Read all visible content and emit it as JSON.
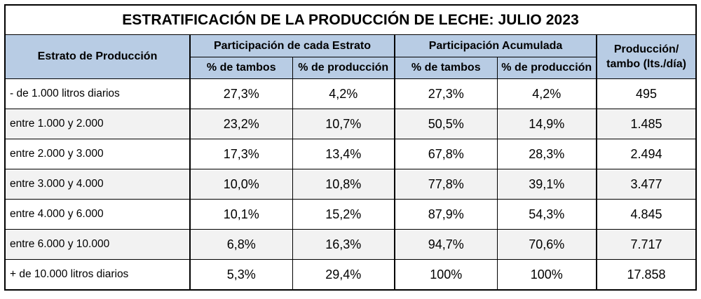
{
  "title": "ESTRATIFICACIÓN DE LA PRODUCCIÓN DE LECHE: JULIO 2023",
  "headers": {
    "estrato": "Estrato de Producción",
    "participacion_estrato": "Participación de cada Estrato",
    "participacion_acumulada": "Participación Acumulada",
    "produccion_line1": "Producción/",
    "produccion_line2": "tambo (lts./día)",
    "pct_tambos": "% de tambos",
    "pct_produccion": "% de producción"
  },
  "rows": [
    {
      "estrato": "- de 1.000 litros diarios",
      "tambos": "27,3%",
      "produccion": "4,2%",
      "acum_tambos": "27,3%",
      "acum_produccion": "4,2%",
      "prod_tambo": "495"
    },
    {
      "estrato": "entre 1.000 y 2.000",
      "tambos": "23,2%",
      "produccion": "10,7%",
      "acum_tambos": "50,5%",
      "acum_produccion": "14,9%",
      "prod_tambo": "1.485"
    },
    {
      "estrato": "entre 2.000 y 3.000",
      "tambos": "17,3%",
      "produccion": "13,4%",
      "acum_tambos": "67,8%",
      "acum_produccion": "28,3%",
      "prod_tambo": "2.494"
    },
    {
      "estrato": "entre 3.000 y 4.000",
      "tambos": "10,0%",
      "produccion": "10,8%",
      "acum_tambos": "77,8%",
      "acum_produccion": "39,1%",
      "prod_tambo": "3.477"
    },
    {
      "estrato": "entre 4.000 y 6.000",
      "tambos": "10,1%",
      "produccion": "15,2%",
      "acum_tambos": "87,9%",
      "acum_produccion": "54,3%",
      "prod_tambo": "4.845"
    },
    {
      "estrato": "entre 6.000 y 10.000",
      "tambos": "6,8%",
      "produccion": "16,3%",
      "acum_tambos": "94,7%",
      "acum_produccion": "70,6%",
      "prod_tambo": "7.717"
    },
    {
      "estrato": "+ de 10.000 litros diarios",
      "tambos": "5,3%",
      "produccion": "29,4%",
      "acum_tambos": "100%",
      "acum_produccion": "100%",
      "prod_tambo": "17.858"
    }
  ],
  "colors": {
    "header_bg": "#b8cce4",
    "alt_row_bg": "#f2f2f2"
  }
}
